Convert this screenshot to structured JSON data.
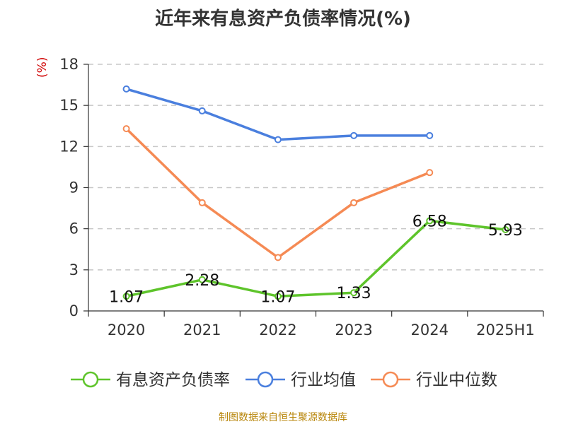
{
  "chart_data": {
    "type": "line",
    "title": "近年来有息资产负债率情况(%)",
    "unit_label": "(%)",
    "categories": [
      "2020",
      "2021",
      "2022",
      "2023",
      "2024",
      "2025H1"
    ],
    "y_ticks": [
      "0",
      "3",
      "6",
      "9",
      "12",
      "15",
      "18"
    ],
    "ylim": [
      0,
      18
    ],
    "grid": "horizontal dashed",
    "legend_position": "bottom",
    "series": [
      {
        "name": "有息资产负债率",
        "color": "#5ec42b",
        "values": [
          1.07,
          2.28,
          1.07,
          1.33,
          6.58,
          5.93
        ],
        "labels": [
          "1.07",
          "2.28",
          "1.07",
          "1.33",
          "6.58",
          "5.93"
        ]
      },
      {
        "name": "行业均值",
        "color": "#4a7fde",
        "values": [
          16.2,
          14.6,
          12.5,
          12.8,
          12.8,
          null
        ]
      },
      {
        "name": "行业中位数",
        "color": "#f58a54",
        "values": [
          13.3,
          7.9,
          3.9,
          7.9,
          10.1,
          null
        ]
      }
    ],
    "source": "制图数据来自恒生聚源数据库"
  }
}
